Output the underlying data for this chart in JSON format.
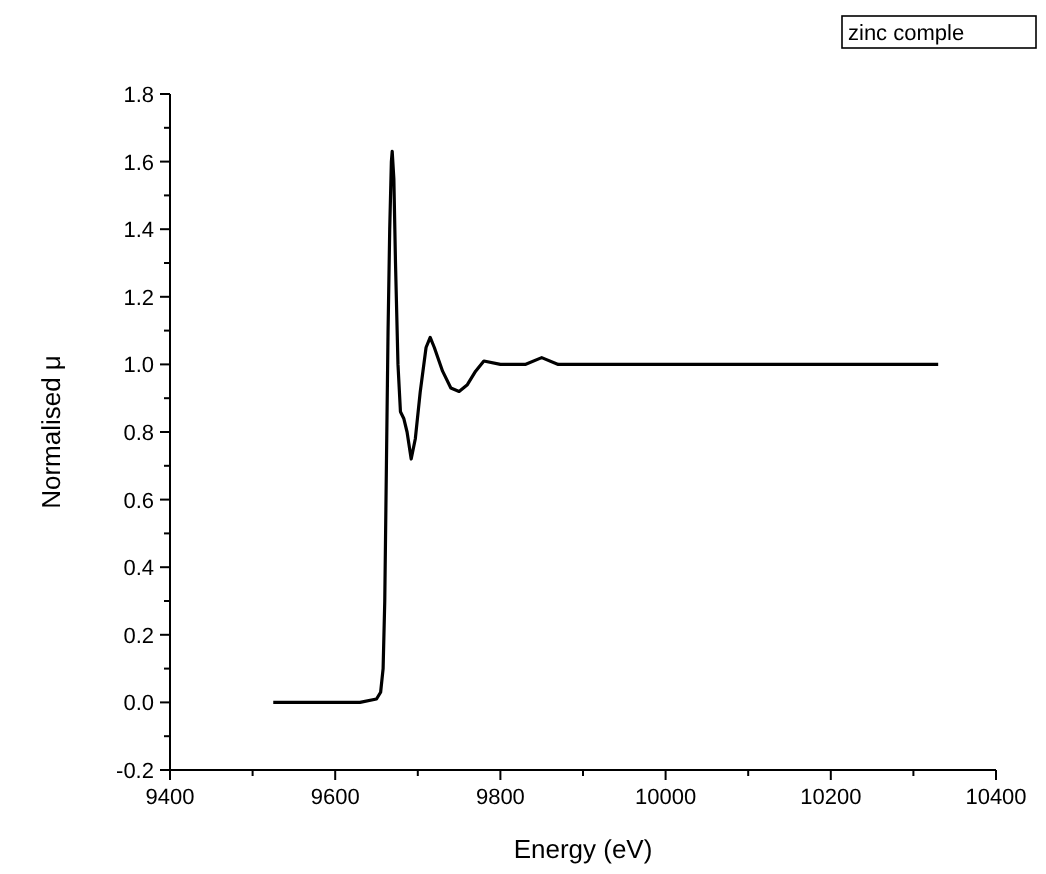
{
  "chart_data": {
    "type": "line",
    "xlabel": "Energy (eV)",
    "ylabel": "Normalised μ",
    "annotations": [
      "zinc comple"
    ],
    "xlim": [
      9400,
      10400
    ],
    "xticks": [
      9400,
      {
        "value": 9500,
        "label": null
      },
      9600,
      {
        "value": 9700,
        "label": null
      },
      9800,
      {
        "value": 9900,
        "label": null
      },
      10000,
      {
        "value": 10100,
        "label": null
      },
      10200,
      {
        "value": 10300,
        "label": null
      },
      10400
    ],
    "ylim": [
      -0.2,
      1.8
    ],
    "yticks": [
      -0.2,
      {
        "value": -0.1,
        "label": null
      },
      {
        "value": 0,
        "label": "0.0"
      },
      {
        "value": 0.1,
        "label": null
      },
      0.2,
      {
        "value": 0.3,
        "label": null
      },
      0.4,
      {
        "value": 0.5,
        "label": null
      },
      0.6,
      {
        "value": 0.7,
        "label": null
      },
      0.8,
      {
        "value": 0.9,
        "label": null
      },
      {
        "value": 1,
        "label": "1.0"
      },
      {
        "value": 1.1,
        "label": null
      },
      1.2,
      {
        "value": 1.3,
        "label": null
      },
      1.4,
      {
        "value": 1.5,
        "label": null
      },
      1.6,
      {
        "value": 1.7,
        "label": null
      },
      1.8
    ],
    "grid": false,
    "marker": "none",
    "line_style": "solid",
    "series": [
      {
        "color": "#000000",
        "x": [
          9525,
          9560,
          9600,
          9630,
          9650,
          9655,
          9658,
          9660,
          9662,
          9664,
          9666,
          9668,
          9669,
          9671,
          9673,
          9676,
          9679,
          9683,
          9687,
          9692,
          9697,
          9703,
          9710,
          9715,
          9720,
          9730,
          9740,
          9750,
          9760,
          9770,
          9780,
          9800,
          9830,
          9850,
          9870,
          9900,
          9950,
          10000,
          10050,
          10100,
          10150,
          10200,
          10250,
          10300,
          10330
        ],
        "values": [
          0.0,
          0.0,
          0.0,
          0.0,
          0.01,
          0.03,
          0.1,
          0.3,
          0.7,
          1.1,
          1.4,
          1.6,
          1.63,
          1.55,
          1.3,
          1.0,
          0.86,
          0.84,
          0.8,
          0.72,
          0.78,
          0.92,
          1.05,
          1.08,
          1.05,
          0.98,
          0.93,
          0.92,
          0.94,
          0.98,
          1.01,
          1.0,
          1.0,
          1.02,
          1.0,
          1.0,
          1.0,
          1.0,
          1.0,
          1.0,
          1.0,
          1.0,
          1.0,
          1.0,
          1.0
        ]
      }
    ]
  }
}
